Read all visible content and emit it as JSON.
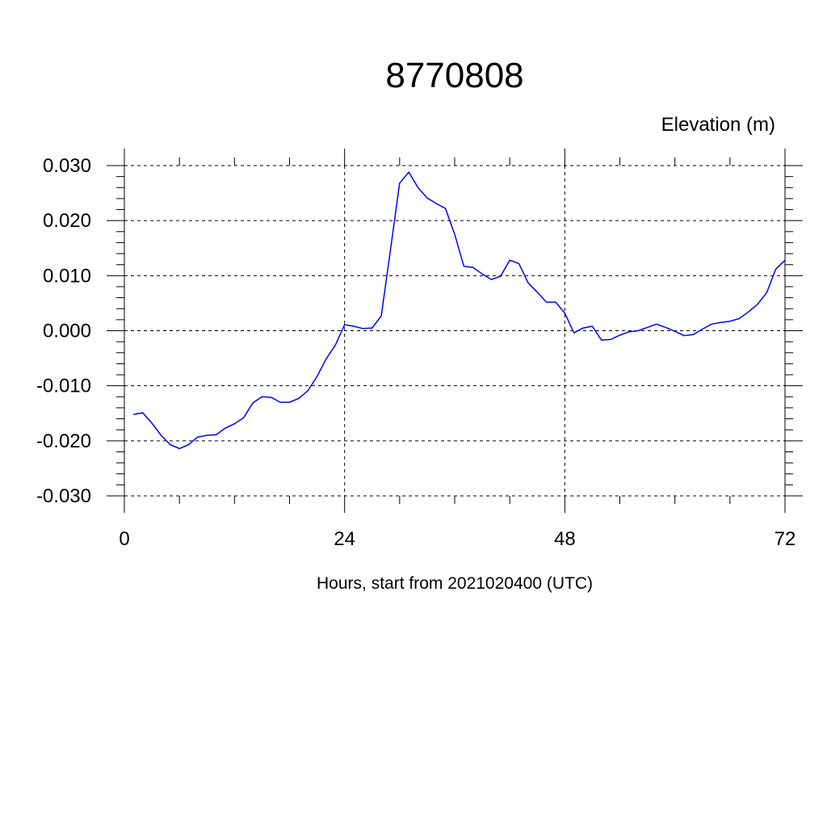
{
  "chart_data": {
    "type": "line",
    "title": "8770808",
    "subtitle": "Elevation (m)",
    "xlabel": "Hours, start from 2021020400 (UTC)",
    "ylabel": "",
    "xlim": [
      0,
      72
    ],
    "ylim": [
      -0.03,
      0.03
    ],
    "x_ticks": [
      0,
      24,
      48,
      72
    ],
    "x_tick_labels": [
      "0",
      "24",
      "48",
      "72"
    ],
    "y_ticks": [
      0.03,
      0.02,
      0.01,
      0.0,
      -0.01,
      -0.02,
      -0.03
    ],
    "y_tick_labels": [
      "0.030",
      "0.020",
      "0.010",
      "0.000",
      "-0.010",
      "-0.020",
      "-0.030"
    ],
    "grid": true,
    "line_color": "#0000ff",
    "series": [
      {
        "x": [
          1,
          2,
          3,
          4,
          5,
          6,
          7,
          8,
          9,
          10,
          11,
          12,
          13,
          14,
          15,
          16,
          17,
          18,
          19,
          20,
          21,
          22,
          23,
          24,
          25,
          26,
          27,
          28,
          29,
          30,
          31,
          32,
          33,
          34,
          35,
          36,
          37,
          38,
          39,
          40,
          41,
          42,
          43,
          44,
          45,
          46,
          47,
          48,
          49,
          50,
          51,
          52,
          53,
          54,
          55,
          56,
          57,
          58,
          59,
          60,
          61,
          62,
          63,
          64,
          65,
          66,
          67,
          68,
          69,
          70,
          71,
          72
        ],
        "values": [
          -0.0152,
          -0.0149,
          -0.0168,
          -0.019,
          -0.0207,
          -0.0214,
          -0.0207,
          -0.0193,
          -0.019,
          -0.0189,
          -0.0177,
          -0.0169,
          -0.0158,
          -0.0131,
          -0.012,
          -0.0121,
          -0.013,
          -0.013,
          -0.0123,
          -0.0109,
          -0.0083,
          -0.0051,
          -0.0026,
          0.0011,
          0.0008,
          0.0004,
          0.0005,
          0.0027,
          0.0147,
          0.0268,
          0.0288,
          0.026,
          0.0241,
          0.0231,
          0.0222,
          0.0175,
          0.0117,
          0.0115,
          0.0103,
          0.0093,
          0.0099,
          0.0128,
          0.0122,
          0.0087,
          0.007,
          0.0052,
          0.0052,
          0.0032,
          -0.0004,
          0.0005,
          0.0008,
          -0.0017,
          -0.0016,
          -0.0008,
          -0.0002,
          0.0,
          0.0006,
          0.0012,
          0.0006,
          -0.0001,
          -0.0009,
          -0.0007,
          0.0003,
          0.0012,
          0.0015,
          0.0017,
          0.0022,
          0.0034,
          0.0048,
          0.0069,
          0.0112,
          0.0128
        ]
      }
    ]
  }
}
